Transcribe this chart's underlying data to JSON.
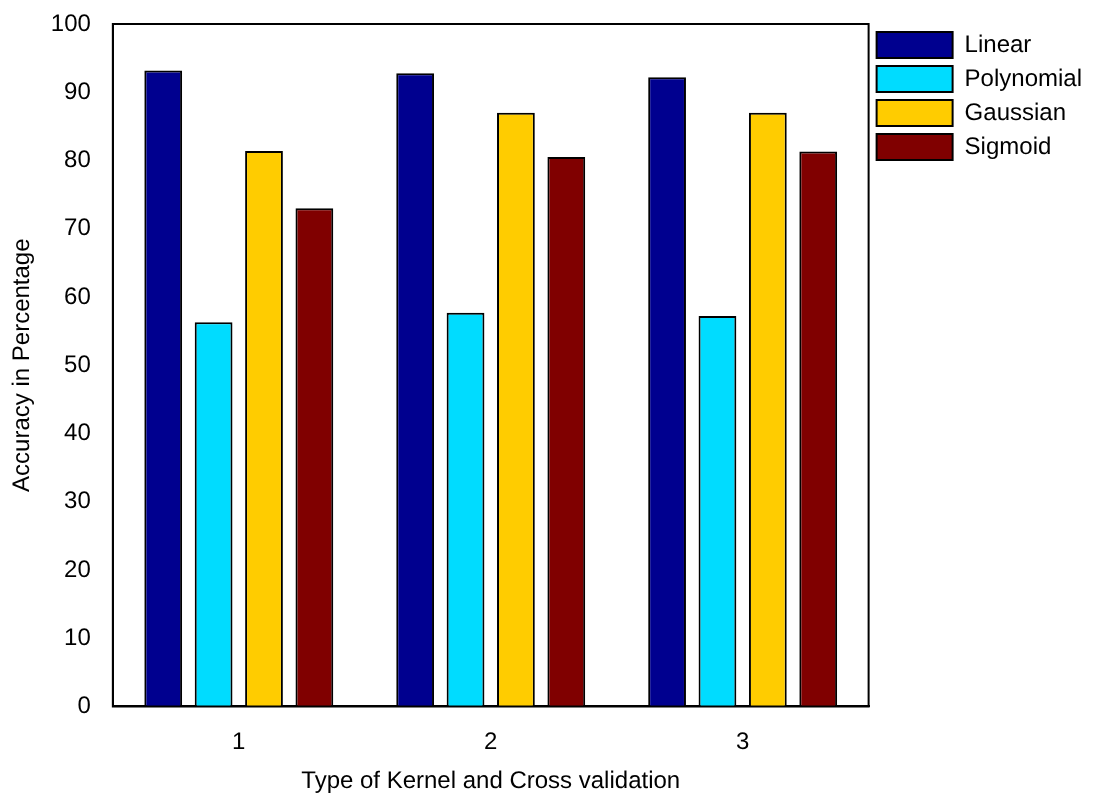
{
  "chart_data": {
    "type": "bar",
    "xlabel": "Type of Kernel and Cross validation",
    "ylabel": "Accuracy in Percentage",
    "categories": [
      "1",
      "2",
      "3"
    ],
    "series": [
      {
        "name": "Linear",
        "color": "#00008f",
        "values": [
          93.2,
          92.8,
          92.2
        ]
      },
      {
        "name": "Polynomial",
        "color": "#00dcff",
        "values": [
          56.3,
          57.7,
          57.2
        ]
      },
      {
        "name": "Gaussian",
        "color": "#ffcc00",
        "values": [
          81.4,
          87,
          87
        ]
      },
      {
        "name": "Sigmoid",
        "color": "#800000",
        "values": [
          73,
          80.5,
          81.3
        ]
      }
    ],
    "ylim": [
      0,
      100
    ],
    "yticks": [
      0,
      10,
      20,
      30,
      40,
      50,
      60,
      70,
      80,
      90,
      100
    ],
    "grid": false,
    "legend": "top right"
  }
}
